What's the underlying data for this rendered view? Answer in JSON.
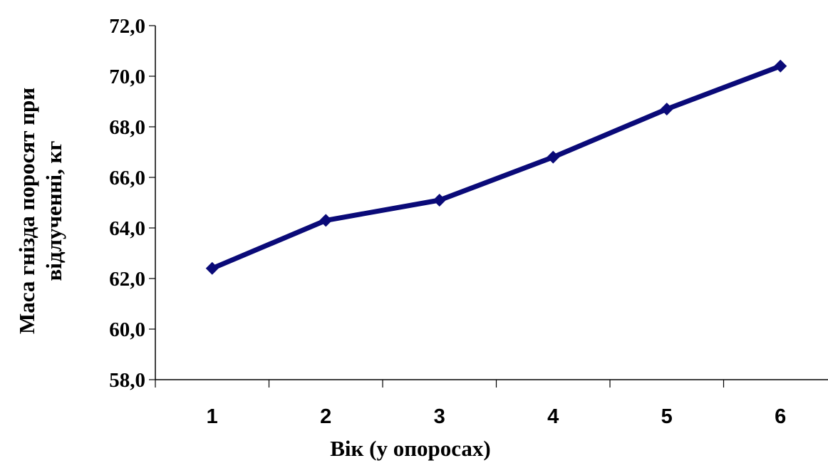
{
  "chart_data": {
    "type": "line",
    "title": "",
    "xlabel": "Вік (у опоросах)",
    "ylabel": [
      "Маса гнізда поросят при",
      "відлученні, кг"
    ],
    "categories": [
      "1",
      "2",
      "3",
      "4",
      "5",
      "6"
    ],
    "series": [
      {
        "values": [
          62.4,
          64.3,
          65.1,
          66.8,
          68.7,
          70.4
        ]
      }
    ],
    "ylim": [
      58.0,
      72.0
    ],
    "yticks": [
      "58,0",
      "60,0",
      "62,0",
      "64,0",
      "66,0",
      "68,0",
      "70,0",
      "72,0"
    ],
    "grid": false,
    "legend": "none",
    "series_color": "#0a0a78",
    "marker": "diamond"
  }
}
